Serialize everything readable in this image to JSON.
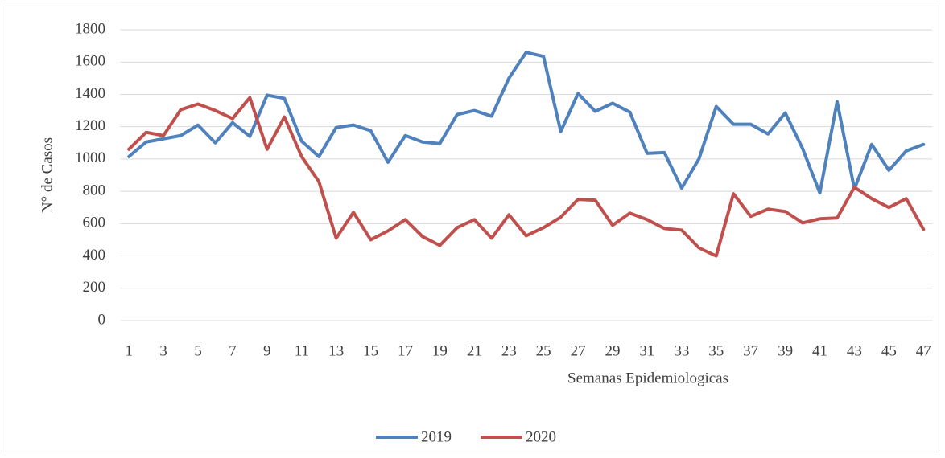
{
  "chart_data": {
    "type": "line",
    "x_label": "Semanas Epidemiologicas",
    "y_label": "N° de Casos",
    "x": [
      1,
      2,
      3,
      4,
      5,
      6,
      7,
      8,
      9,
      10,
      11,
      12,
      13,
      14,
      15,
      16,
      17,
      18,
      19,
      20,
      21,
      22,
      23,
      24,
      25,
      26,
      27,
      28,
      29,
      30,
      31,
      32,
      33,
      34,
      35,
      36,
      37,
      38,
      39,
      40,
      41,
      42,
      43,
      44,
      45,
      46,
      47
    ],
    "series": [
      {
        "name": "2019",
        "color": "#4f81bd",
        "values": [
          1015,
          1105,
          1125,
          1145,
          1210,
          1100,
          1225,
          1140,
          1395,
          1375,
          1110,
          1015,
          1195,
          1210,
          1175,
          980,
          1145,
          1105,
          1095,
          1275,
          1300,
          1265,
          1500,
          1660,
          1635,
          1170,
          1405,
          1295,
          1345,
          1290,
          1035,
          1040,
          820,
          1000,
          1325,
          1215,
          1215,
          1155,
          1285,
          1065,
          790,
          1355,
          815,
          1090,
          930,
          1050,
          1090
        ]
      },
      {
        "name": "2020",
        "color": "#c0504d",
        "values": [
          1060,
          1165,
          1145,
          1305,
          1340,
          1300,
          1250,
          1380,
          1060,
          1260,
          1015,
          860,
          510,
          670,
          500,
          555,
          625,
          520,
          465,
          575,
          625,
          510,
          655,
          525,
          575,
          640,
          750,
          745,
          590,
          665,
          625,
          570,
          560,
          450,
          400,
          785,
          645,
          690,
          675,
          605,
          630,
          635,
          825,
          755,
          700,
          755,
          565
        ]
      }
    ],
    "xlim": [
      0.5,
      47.5
    ],
    "xticks": [
      1,
      3,
      5,
      7,
      9,
      11,
      13,
      15,
      17,
      19,
      21,
      23,
      25,
      27,
      29,
      31,
      33,
      35,
      37,
      39,
      41,
      43,
      45,
      47
    ],
    "ylim": [
      0,
      1800
    ],
    "yticks": [
      0,
      200,
      400,
      600,
      800,
      1000,
      1200,
      1400,
      1600,
      1800
    ],
    "grid": true,
    "legend": "bottom"
  }
}
